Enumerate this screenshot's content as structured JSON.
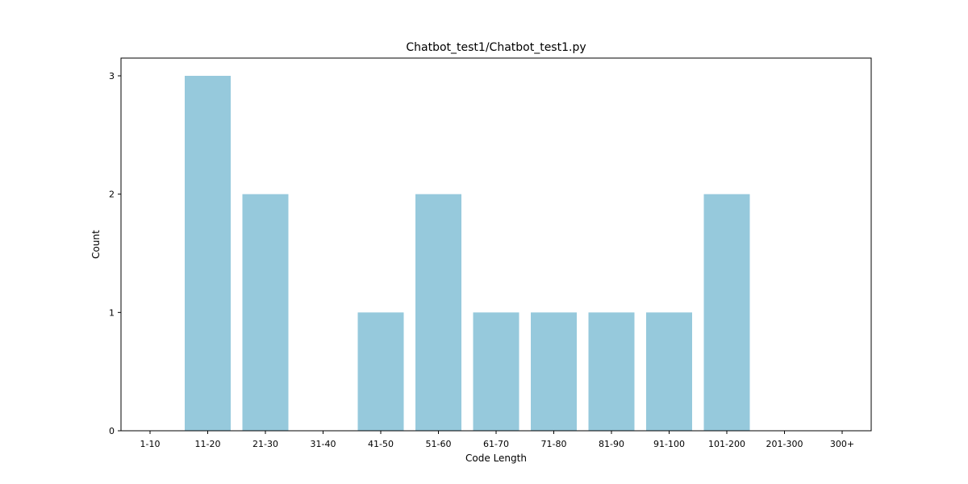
{
  "chart_data": {
    "type": "bar",
    "title": "Chatbot_test1/Chatbot_test1.py",
    "xlabel": "Code Length",
    "ylabel": "Count",
    "categories": [
      "1-10",
      "11-20",
      "21-30",
      "31-40",
      "41-50",
      "51-60",
      "61-70",
      "71-80",
      "81-90",
      "91-100",
      "101-200",
      "201-300",
      "300+"
    ],
    "values": [
      0,
      3,
      2,
      0,
      1,
      2,
      1,
      1,
      1,
      1,
      2,
      0,
      0
    ],
    "ylim": [
      0,
      3.15
    ],
    "yticks": [
      "0",
      "1",
      "2",
      "3"
    ],
    "bar_color": "#96c9dc",
    "grid": false,
    "legend": "none"
  }
}
